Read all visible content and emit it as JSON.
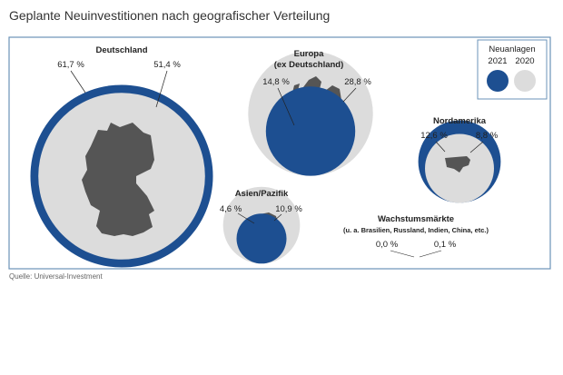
{
  "title": "Geplante Neuinvestitionen nach geografischer Verteilung",
  "source": "Quelle: Universal-Investment",
  "colors": {
    "y2021": "#1d4f91",
    "y2020": "#dcdcdc",
    "frame": "#6b93b8",
    "map": "#555555"
  },
  "chart_data": {
    "type": "bubble",
    "legend": {
      "title_line1": "Neuanlagen",
      "title_line2": "",
      "placement": "top-right",
      "series": [
        {
          "name": "2021",
          "color": "#1d4f91"
        },
        {
          "name": "2020",
          "color": "#dcdcdc"
        }
      ]
    },
    "unit": "%",
    "regions": [
      {
        "name": "Deutschland",
        "subtitle": "",
        "value_2021": 61.7,
        "value_2020": 51.4,
        "label_2021": "61,7 %",
        "label_2020": "51,4 %",
        "map_icon": "germany-map-icon"
      },
      {
        "name": "Europa",
        "subtitle": "(ex Deutschland)",
        "value_2021": 14.8,
        "value_2020": 28.8,
        "label_2021": "14,8 %",
        "label_2020": "28,8 %",
        "map_icon": "europe-map-icon"
      },
      {
        "name": "Nordamerika",
        "subtitle": "",
        "value_2021": 12.6,
        "value_2020": 8.8,
        "label_2021": "12,6 %",
        "label_2020": "8,8 %",
        "map_icon": "usa-map-icon"
      },
      {
        "name": "Asien/Pazifik",
        "subtitle": "",
        "value_2021": 4.6,
        "value_2020": 10.9,
        "label_2021": "4,6 %",
        "label_2020": "10,9 %",
        "map_icon": "asia-map-icon"
      },
      {
        "name": "Wachstumsmärkte",
        "subtitle": "(u. a. Brasilien, Russland, Indien, China, etc.)",
        "value_2021": 0.0,
        "value_2020": 0.1,
        "label_2021": "0,0 %",
        "label_2020": "0,1 %",
        "map_icon": ""
      }
    ]
  }
}
